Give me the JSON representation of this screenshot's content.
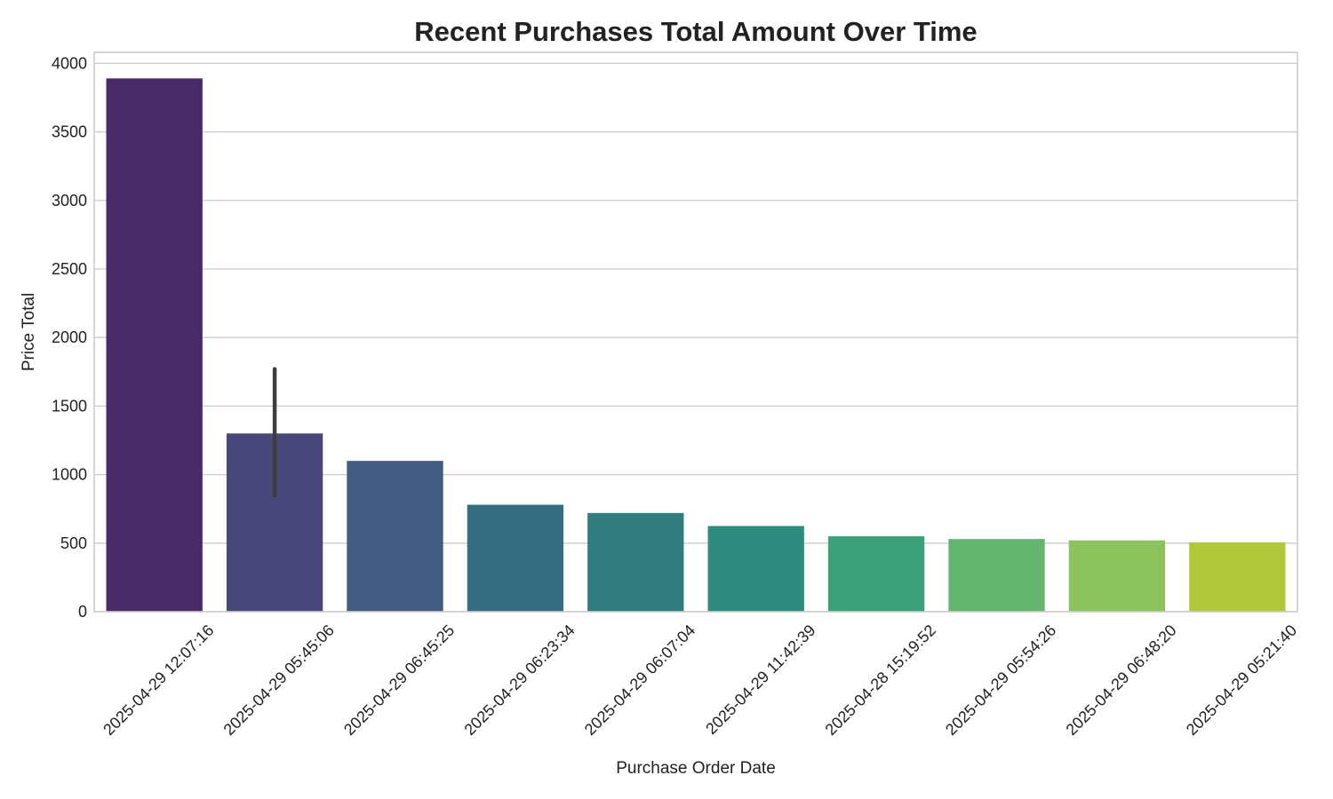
{
  "chart_data": {
    "type": "bar",
    "title": "Recent Purchases Total Amount Over Time",
    "xlabel": "Purchase Order Date",
    "ylabel": "Price Total",
    "ylim": [
      0,
      4080
    ],
    "yticks": [
      0,
      500,
      1000,
      1500,
      2000,
      2500,
      3000,
      3500,
      4000
    ],
    "grid": true,
    "legend": "none",
    "categories": [
      "2025-04-29 12:07:16",
      "2025-04-29 05:45:06",
      "2025-04-29 06:45:25",
      "2025-04-29 06:23:34",
      "2025-04-29 06:07:04",
      "2025-04-29 11:42:39",
      "2025-04-28 15:19:52",
      "2025-04-29 05:54:26",
      "2025-04-29 06:48:20",
      "2025-04-29 05:21:40"
    ],
    "values": [
      3890,
      1300,
      1100,
      780,
      720,
      625,
      550,
      530,
      520,
      505
    ],
    "error_bars": [
      null,
      [
        845,
        1770
      ],
      null,
      null,
      null,
      null,
      null,
      null,
      null,
      null
    ],
    "colors": [
      "#482a68",
      "#48487c",
      "#415c80",
      "#376d80",
      "#307c7f",
      "#2d8c7d",
      "#3ba17a",
      "#63b56f",
      "#8bc35d",
      "#b1c83b"
    ]
  }
}
